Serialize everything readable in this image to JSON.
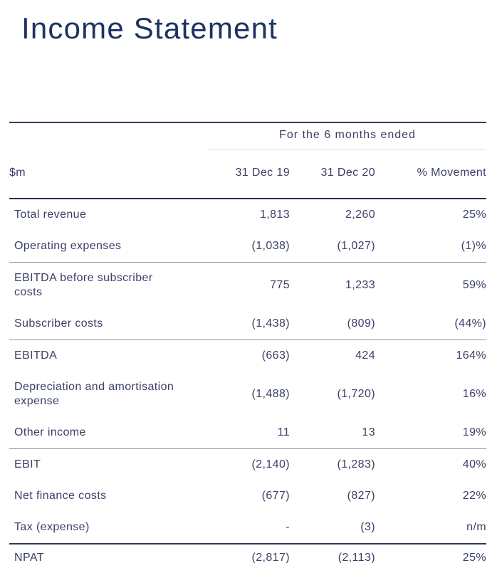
{
  "page": {
    "title": "Income Statement"
  },
  "colors": {
    "title_navy": "#1d3361",
    "text_navy": "#3a4066",
    "line_navy": "#2e3a5c",
    "line_gray": "#97979c",
    "line_light": "#dcdce0"
  },
  "table": {
    "group_header": "For the 6 months ended",
    "columns": {
      "label": "$m",
      "col1": "31 Dec 19",
      "col2": "31 Dec 20",
      "col3": "% Movement"
    },
    "rows": [
      {
        "label": "Total revenue",
        "dec19": "1,813",
        "dec20": "2,260",
        "movement": "25%"
      },
      {
        "label": "Operating expenses",
        "dec19": "(1,038)",
        "dec20": "(1,027)",
        "movement": "(1)%"
      },
      {
        "label": "EBITDA before subscriber\ncosts",
        "dec19": "775",
        "dec20": "1,233",
        "movement": "59%"
      },
      {
        "label": "Subscriber costs",
        "dec19": "(1,438)",
        "dec20": "(809)",
        "movement": "(44%)"
      },
      {
        "label": "EBITDA",
        "dec19": "(663)",
        "dec20": "424",
        "movement": "164%"
      },
      {
        "label": "Depreciation and amortisation\nexpense",
        "dec19": "(1,488)",
        "dec20": "(1,720)",
        "movement": "16%"
      },
      {
        "label": "Other income",
        "dec19": "11",
        "dec20": "13",
        "movement": "19%"
      },
      {
        "label": "EBIT",
        "dec19": "(2,140)",
        "dec20": "(1,283)",
        "movement": "40%"
      },
      {
        "label": "Net finance costs",
        "dec19": "(677)",
        "dec20": "(827)",
        "movement": "22%"
      },
      {
        "label": "Tax (expense)",
        "dec19": "-",
        "dec20": "(3)",
        "movement": "n/m"
      },
      {
        "label": "NPAT",
        "dec19": "(2,817)",
        "dec20": "(2,113)",
        "movement": "25%"
      }
    ]
  }
}
